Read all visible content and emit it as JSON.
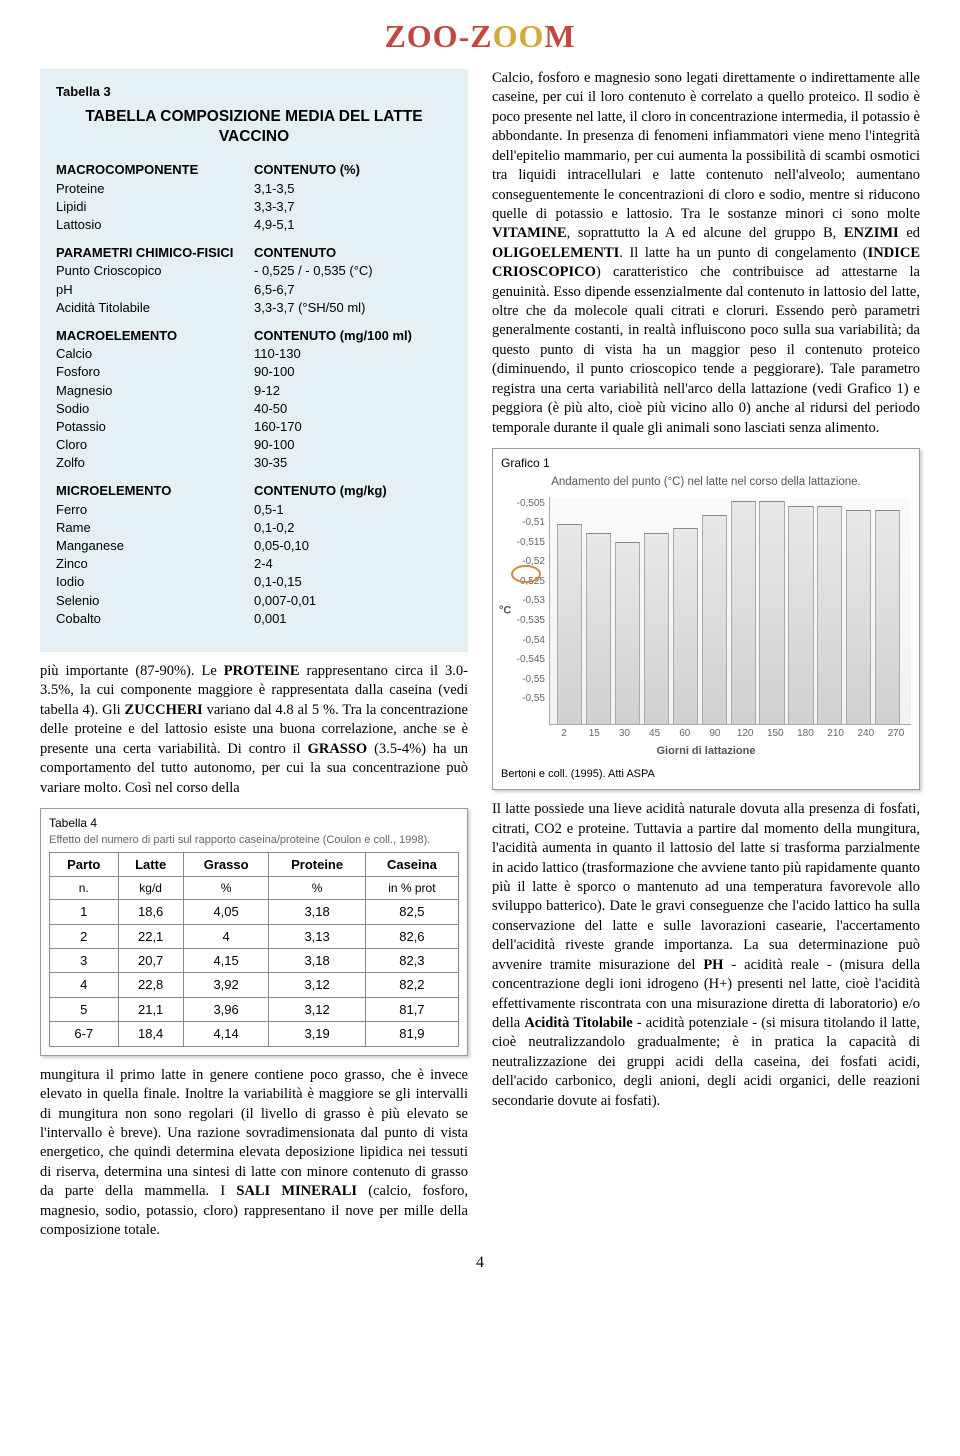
{
  "logo": {
    "part1": "ZOO-Z",
    "part2": "O",
    "part3": "O",
    "part4": "M"
  },
  "table3": {
    "label": "Tabella 3",
    "title": "TABELLA COMPOSIZIONE MEDIA DEL LATTE VACCINO",
    "sections": [
      {
        "header_l": "MACROCOMPONENTE",
        "header_r": "CONTENUTO (%)",
        "rows": [
          [
            "Proteine",
            "3,1-3,5"
          ],
          [
            "Lipidi",
            "3,3-3,7"
          ],
          [
            "Lattosio",
            "4,9-5,1"
          ]
        ]
      },
      {
        "header_l": "PARAMETRI CHIMICO-FISICI",
        "header_r": "CONTENUTO",
        "rows": [
          [
            "Punto Crioscopico",
            "- 0,525 / - 0,535 (°C)"
          ],
          [
            "pH",
            "6,5-6,7"
          ],
          [
            "Acidità Titolabile",
            "3,3-3,7 (°SH/50 ml)"
          ]
        ]
      },
      {
        "header_l": "MACROELEMENTO",
        "header_r": "CONTENUTO (mg/100 ml)",
        "rows": [
          [
            "Calcio",
            "110-130"
          ],
          [
            "Fosforo",
            "90-100"
          ],
          [
            "Magnesio",
            "9-12"
          ],
          [
            "Sodio",
            "40-50"
          ],
          [
            "Potassio",
            "160-170"
          ],
          [
            "Cloro",
            "90-100"
          ],
          [
            "Zolfo",
            "30-35"
          ]
        ]
      },
      {
        "header_l": "MICROELEMENTO",
        "header_r": "CONTENUTO (mg/kg)",
        "rows": [
          [
            "Ferro",
            "0,5-1"
          ],
          [
            "Rame",
            "0,1-0,2"
          ],
          [
            "Manganese",
            "0,05-0,10"
          ],
          [
            "Zinco",
            "2-4"
          ],
          [
            "Iodio",
            "0,1-0,15"
          ],
          [
            "Selenio",
            "0,007-0,01"
          ],
          [
            "Cobalto",
            "0,001"
          ]
        ]
      }
    ]
  },
  "para_left1": "più importante (87-90%). Le PROTEINE rappresentano circa il 3.0-3.5%, la cui componente maggiore è rappresentata dalla caseina (vedi tabella 4). Gli ZUCCHERI variano dal 4.8 al 5 %. Tra la concentrazione delle proteine e del lattosio esiste una buona correlazione, anche se è presente una certa variabilità. Di contro il GRASSO (3.5-4%) ha un comportamento del tutto autonomo, per cui la sua concentrazione può variare molto. Così nel corso della",
  "table4": {
    "label": "Tabella 4",
    "caption": "Effetto del numero di parti sul rapporto caseina/proteine (Coulon e coll., 1998).",
    "headers1": [
      "Parto",
      "Latte",
      "Grasso",
      "Proteine",
      "Caseina"
    ],
    "headers2": [
      "n.",
      "kg/d",
      "%",
      "%",
      "in % prot"
    ],
    "rows": [
      [
        "1",
        "18,6",
        "4,05",
        "3,18",
        "82,5"
      ],
      [
        "2",
        "22,1",
        "4",
        "3,13",
        "82,6"
      ],
      [
        "3",
        "20,7",
        "4,15",
        "3,18",
        "82,3"
      ],
      [
        "4",
        "22,8",
        "3,92",
        "3,12",
        "82,2"
      ],
      [
        "5",
        "21,1",
        "3,96",
        "3,12",
        "81,7"
      ],
      [
        "6-7",
        "18,4",
        "4,14",
        "3,19",
        "81,9"
      ]
    ]
  },
  "para_left2": "mungitura il primo latte in genere contiene poco grasso, che è invece elevato in quella finale. Inoltre la variabilità è maggiore se gli intervalli di mungitura non sono regolari (il livello di grasso è più elevato se l'intervallo è breve). Una razione sovradimensionata dal punto di vista energetico, che quindi determina elevata deposizione lipidica nei tessuti di riserva, determina una sintesi di latte con minore contenuto di grasso da parte della mammella. I SALI MINERALI (calcio, fosforo, magnesio, sodio, potassio, cloro) rappresentano il nove per mille della composizione totale.",
  "para_right1": "Calcio, fosforo e magnesio sono legati direttamente o indirettamente alle caseine, per cui il loro contenuto è correlato a quello proteico. Il sodio è poco presente nel latte, il cloro in concentrazione intermedia, il potassio è abbondante. In presenza di fenomeni infiammatori viene meno l'integrità dell'epitelio mammario, per cui aumenta la possibilità di scambi osmotici tra liquidi intracellulari e latte contenuto nell'alveolo; aumentano conseguentemente le concentrazioni di cloro e sodio, mentre si riducono quelle di potassio e lattosio. Tra le sostanze minori ci sono molte VITAMINE, soprattutto la A ed alcune del gruppo B, ENZIMI ed OLIGOELEMENTI. Il latte ha un punto di congelamento (INDICE CRIOSCOPICO) caratteristico che contribuisce ad attestarne la genuinità. Esso dipende essenzialmente dal contenuto in lattosio del latte, oltre che da molecole quali citrati e cloruri. Essendo però parametri generalmente costanti, in realtà influiscono poco sulla sua variabilità; da questo punto di vista ha un maggior peso il contenuto proteico (diminuendo, il punto crioscopico tende a peggiorare). Tale parametro registra una certa variabilità nell'arco della lattazione (vedi Grafico 1) e peggiora (è più alto, cioè più vicino allo 0) anche al ridursi del periodo temporale durante il quale gli animali sono lasciati senza alimento.",
  "grafico1": {
    "label": "Grafico 1",
    "title": "Andamento del punto (°C) nel latte nel corso della lattazione.",
    "ylabel": "°C",
    "yticks": [
      "-0,505",
      "-0,51",
      "-0,515",
      "-0,52",
      "-0,525",
      "-0,53",
      "-0,535",
      "-0,54",
      "-0,545",
      "-0,55",
      "-0,55"
    ],
    "xlabel": "Giorni di lattazione",
    "xticks": [
      "2",
      "15",
      "30",
      "45",
      "60",
      "90",
      "120",
      "150",
      "180",
      "210",
      "240",
      "270"
    ],
    "bars_top_pct": [
      12,
      16,
      20,
      16,
      14,
      8,
      2,
      2,
      4,
      4,
      6,
      6
    ],
    "cite": "Bertoni e coll. (1995). Atti ASPA",
    "bar_color": "#d8d8d8",
    "background": "#f6f6f6"
  },
  "para_right2": "Il latte possiede una lieve acidità naturale dovuta alla presenza di fosfati, citrati, CO2 e proteine. Tuttavia a partire dal momento della mungitura, l'acidità aumenta in quanto il lattosio del latte si trasforma parzialmente in acido lattico (trasformazione che avviene tanto più rapidamente quanto più il latte è sporco o mantenuto ad una temperatura favorevole allo sviluppo batterico). Date le gravi conseguenze che l'acido lattico ha sulla conservazione del latte e sulle lavorazioni casearie, l'accertamento dell'acidità riveste grande importanza. La sua determinazione può avvenire tramite misurazione del PH - acidità reale - (misura della concentrazione degli ioni idrogeno (H+) presenti nel latte, cioè l'acidità effettivamente riscontrata con una misurazione diretta di laboratorio) e/o della Acidità Titolabile - acidità potenziale - (si misura titolando il latte, cioè neutralizzandolo gradualmente; è in pratica la capacità di neutralizzazione dei gruppi acidi della caseina, dei fosfati acidi, dell'acido carbonico, degli anioni, degli acidi organici, delle reazioni secondarie dovute ai fosfati).",
  "page_number": "4"
}
